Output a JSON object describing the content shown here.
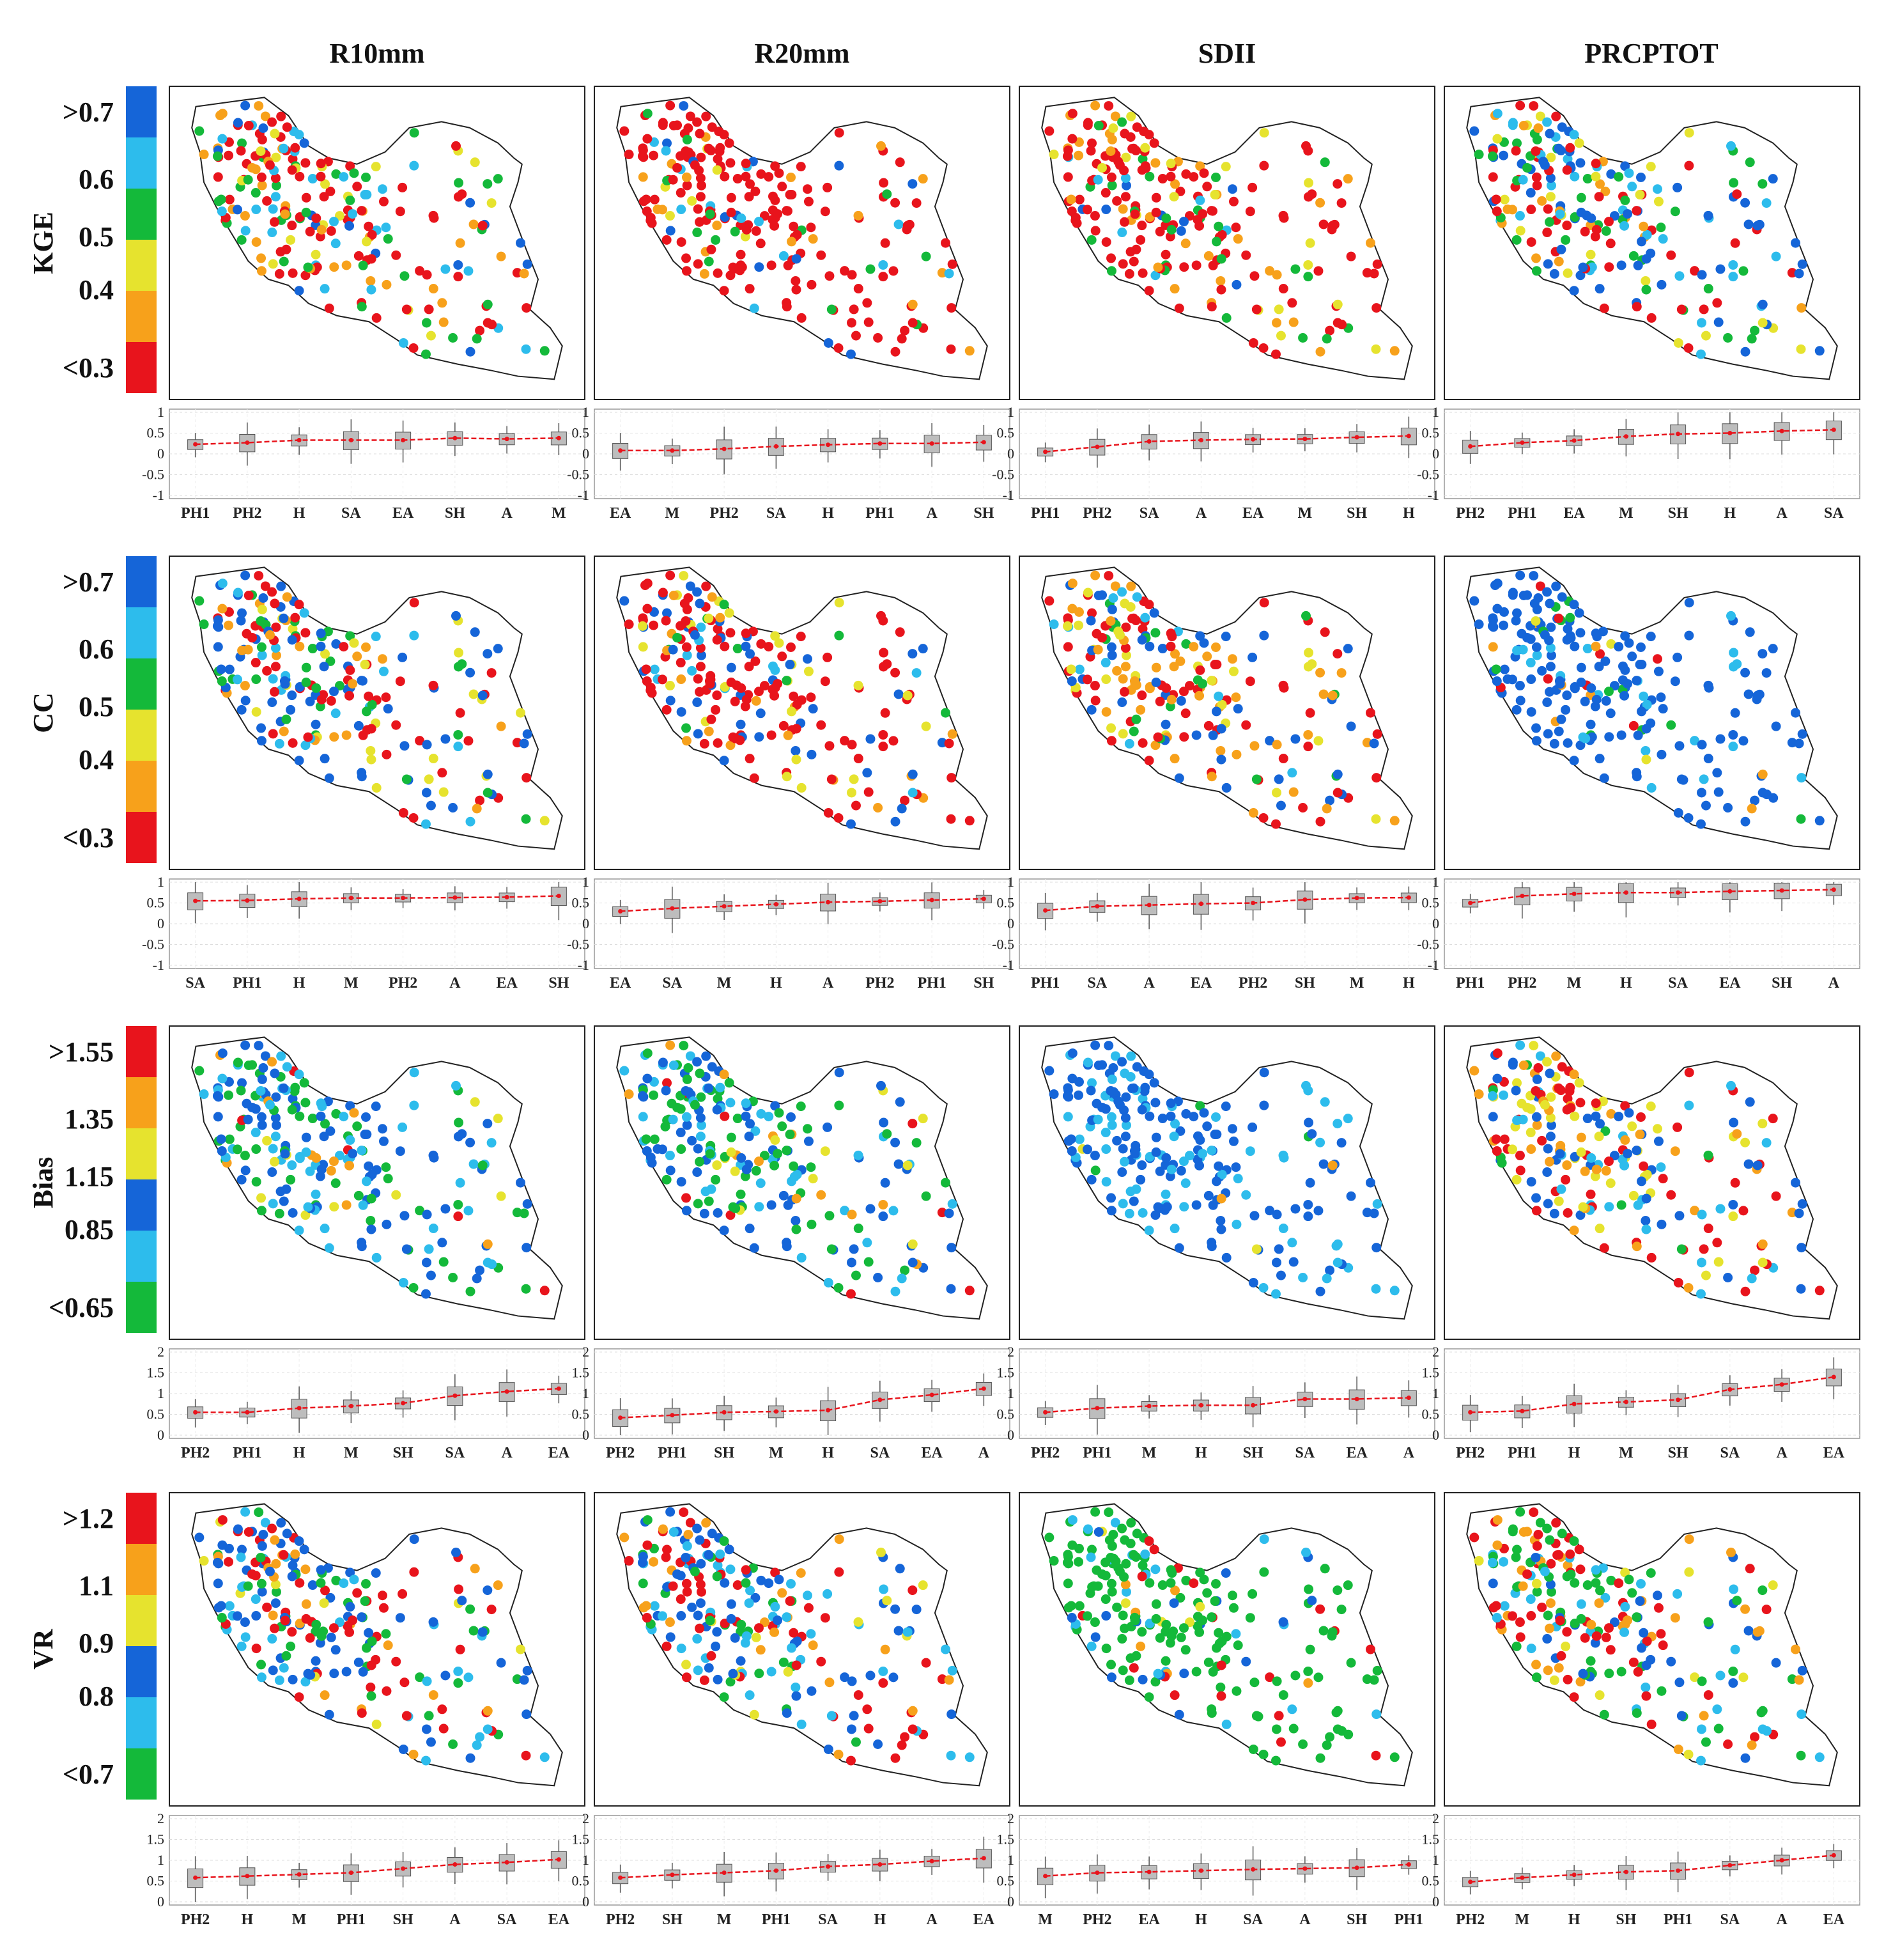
{
  "columns": [
    "R10mm",
    "R20mm",
    "SDII",
    "PRCPTOT"
  ],
  "legend_colors": [
    "#e8141c",
    "#f7a11b",
    "#e6e32e",
    "#14b93a",
    "#2dbcec",
    "#1565d8"
  ],
  "rows": [
    {
      "metric": "KGE",
      "legend_labels": [
        ">0.7",
        "0.6",
        "0.5",
        "0.4",
        "<0.3"
      ],
      "legend_order": "top-high"
    },
    {
      "metric": "CC",
      "legend_labels": [
        ">0.7",
        "0.6",
        "0.5",
        "0.4",
        "<0.3"
      ],
      "legend_order": "top-high"
    },
    {
      "metric": "Bias",
      "legend_labels": [
        ">1.55",
        "1.35",
        "1.15",
        "0.85",
        "<0.65"
      ],
      "legend_order": "top-high"
    },
    {
      "metric": "VR",
      "legend_labels": [
        ">1.2",
        "1.1",
        "0.9",
        "0.8",
        "<0.7"
      ],
      "legend_order": "top-high"
    }
  ],
  "chart_data": [
    {
      "type": "box",
      "metric": "KGE",
      "column": "R10mm",
      "ylim": [
        -1,
        1
      ],
      "yticks": [
        "1",
        "0.5",
        "0",
        "-0.5",
        "-1"
      ],
      "categories": [
        "PH1",
        "PH2",
        "H",
        "SA",
        "EA",
        "SH",
        "A",
        "M"
      ],
      "medians": [
        0.23,
        0.27,
        0.33,
        0.33,
        0.33,
        0.38,
        0.36,
        0.38
      ]
    },
    {
      "type": "box",
      "metric": "KGE",
      "column": "R20mm",
      "ylim": [
        -1,
        1
      ],
      "yticks": [
        "1",
        "0.5",
        "0",
        "-0.5",
        "-1"
      ],
      "categories": [
        "EA",
        "M",
        "PH2",
        "SA",
        "H",
        "PH1",
        "A",
        "SH"
      ],
      "medians": [
        0.08,
        0.08,
        0.12,
        0.18,
        0.22,
        0.25,
        0.25,
        0.28
      ]
    },
    {
      "type": "box",
      "metric": "KGE",
      "column": "SDII",
      "ylim": [
        -1,
        1
      ],
      "yticks": [
        "1",
        "0.5",
        "0",
        "-0.5",
        "-1"
      ],
      "categories": [
        "PH1",
        "PH2",
        "SA",
        "A",
        "EA",
        "M",
        "SH",
        "H"
      ],
      "medians": [
        0.05,
        0.17,
        0.3,
        0.33,
        0.35,
        0.36,
        0.4,
        0.43
      ]
    },
    {
      "type": "box",
      "metric": "KGE",
      "column": "PRCPTOT",
      "ylim": [
        -1,
        1
      ],
      "yticks": [
        "1",
        "0.5",
        "0",
        "-0.5",
        "-1"
      ],
      "categories": [
        "PH2",
        "PH1",
        "EA",
        "M",
        "SH",
        "H",
        "A",
        "SA"
      ],
      "medians": [
        0.18,
        0.27,
        0.32,
        0.42,
        0.48,
        0.5,
        0.55,
        0.58
      ]
    },
    {
      "type": "box",
      "metric": "CC",
      "column": "R10mm",
      "ylim": [
        -1,
        1
      ],
      "yticks": [
        "1",
        "0.5",
        "0",
        "-0.5",
        "-1"
      ],
      "categories": [
        "SA",
        "PH1",
        "H",
        "M",
        "PH2",
        "A",
        "EA",
        "SH"
      ],
      "medians": [
        0.55,
        0.56,
        0.6,
        0.62,
        0.62,
        0.63,
        0.64,
        0.67
      ]
    },
    {
      "type": "box",
      "metric": "CC",
      "column": "R20mm",
      "ylim": [
        -1,
        1
      ],
      "yticks": [
        "1",
        "0.5",
        "0",
        "-0.5",
        "-1"
      ],
      "categories": [
        "EA",
        "SA",
        "M",
        "H",
        "A",
        "PH2",
        "PH1",
        "SH"
      ],
      "medians": [
        0.3,
        0.37,
        0.42,
        0.47,
        0.52,
        0.54,
        0.57,
        0.6
      ]
    },
    {
      "type": "box",
      "metric": "CC",
      "column": "SDII",
      "ylim": [
        -1,
        1
      ],
      "yticks": [
        "1",
        "0.5",
        "0",
        "-0.5",
        "-1"
      ],
      "categories": [
        "PH1",
        "SA",
        "A",
        "EA",
        "PH2",
        "SH",
        "M",
        "H"
      ],
      "medians": [
        0.32,
        0.42,
        0.45,
        0.48,
        0.5,
        0.58,
        0.62,
        0.63
      ]
    },
    {
      "type": "box",
      "metric": "CC",
      "column": "PRCPTOT",
      "ylim": [
        -1,
        1
      ],
      "yticks": [
        "1",
        "0.5",
        "0",
        "-0.5",
        "-1"
      ],
      "categories": [
        "PH1",
        "PH2",
        "M",
        "H",
        "SA",
        "EA",
        "SH",
        "A"
      ],
      "medians": [
        0.5,
        0.67,
        0.72,
        0.75,
        0.75,
        0.78,
        0.8,
        0.82
      ]
    },
    {
      "type": "box",
      "metric": "Bias",
      "column": "R10mm",
      "ylim": [
        0,
        2
      ],
      "yticks": [
        "2",
        "1.5",
        "1",
        "0.5",
        "0"
      ],
      "categories": [
        "PH2",
        "PH1",
        "H",
        "M",
        "SH",
        "SA",
        "A",
        "EA"
      ],
      "medians": [
        0.55,
        0.55,
        0.65,
        0.7,
        0.77,
        0.95,
        1.05,
        1.12
      ]
    },
    {
      "type": "box",
      "metric": "Bias",
      "column": "R20mm",
      "ylim": [
        0,
        2
      ],
      "yticks": [
        "2",
        "1.5",
        "1",
        "0.5",
        "0"
      ],
      "categories": [
        "PH2",
        "PH1",
        "SH",
        "M",
        "H",
        "SA",
        "EA",
        "A"
      ],
      "medians": [
        0.42,
        0.48,
        0.55,
        0.57,
        0.6,
        0.85,
        0.97,
        1.12
      ]
    },
    {
      "type": "box",
      "metric": "Bias",
      "column": "SDII",
      "ylim": [
        0,
        2
      ],
      "yticks": [
        "2",
        "1.5",
        "1",
        "0.5",
        "0"
      ],
      "categories": [
        "PH2",
        "PH1",
        "M",
        "H",
        "SH",
        "SA",
        "EA",
        "A"
      ],
      "medians": [
        0.55,
        0.65,
        0.7,
        0.72,
        0.72,
        0.87,
        0.87,
        0.9
      ]
    },
    {
      "type": "box",
      "metric": "Bias",
      "column": "PRCPTOT",
      "ylim": [
        0,
        2
      ],
      "yticks": [
        "2",
        "1.5",
        "1",
        "0.5",
        "0"
      ],
      "categories": [
        "PH2",
        "PH1",
        "H",
        "M",
        "SH",
        "SA",
        "A",
        "EA"
      ],
      "medians": [
        0.55,
        0.58,
        0.75,
        0.8,
        0.85,
        1.1,
        1.22,
        1.4
      ]
    },
    {
      "type": "box",
      "metric": "VR",
      "column": "R10mm",
      "ylim": [
        0,
        2
      ],
      "yticks": [
        "2",
        "1.5",
        "1",
        "0.5",
        "0"
      ],
      "categories": [
        "PH2",
        "H",
        "M",
        "PH1",
        "SH",
        "A",
        "SA",
        "EA"
      ],
      "medians": [
        0.58,
        0.62,
        0.66,
        0.7,
        0.8,
        0.9,
        0.95,
        1.02
      ]
    },
    {
      "type": "box",
      "metric": "VR",
      "column": "R20mm",
      "ylim": [
        0,
        2
      ],
      "yticks": [
        "2",
        "1.5",
        "1",
        "0.5",
        "0"
      ],
      "categories": [
        "PH2",
        "SH",
        "M",
        "PH1",
        "SA",
        "H",
        "A",
        "EA"
      ],
      "medians": [
        0.58,
        0.65,
        0.7,
        0.75,
        0.85,
        0.9,
        0.98,
        1.05
      ]
    },
    {
      "type": "box",
      "metric": "VR",
      "column": "SDII",
      "ylim": [
        0,
        2
      ],
      "yticks": [
        "2",
        "1.5",
        "1",
        "0.5",
        "0"
      ],
      "categories": [
        "M",
        "PH2",
        "EA",
        "H",
        "SA",
        "A",
        "SH",
        "PH1"
      ],
      "medians": [
        0.62,
        0.7,
        0.72,
        0.75,
        0.78,
        0.8,
        0.82,
        0.9
      ]
    },
    {
      "type": "box",
      "metric": "VR",
      "column": "PRCPTOT",
      "ylim": [
        0,
        2
      ],
      "yticks": [
        "2",
        "1.5",
        "1",
        "0.5",
        "0"
      ],
      "categories": [
        "PH2",
        "M",
        "H",
        "SH",
        "PH1",
        "SA",
        "A",
        "EA"
      ],
      "medians": [
        0.48,
        0.58,
        0.65,
        0.72,
        0.75,
        0.88,
        1.0,
        1.12
      ]
    }
  ]
}
